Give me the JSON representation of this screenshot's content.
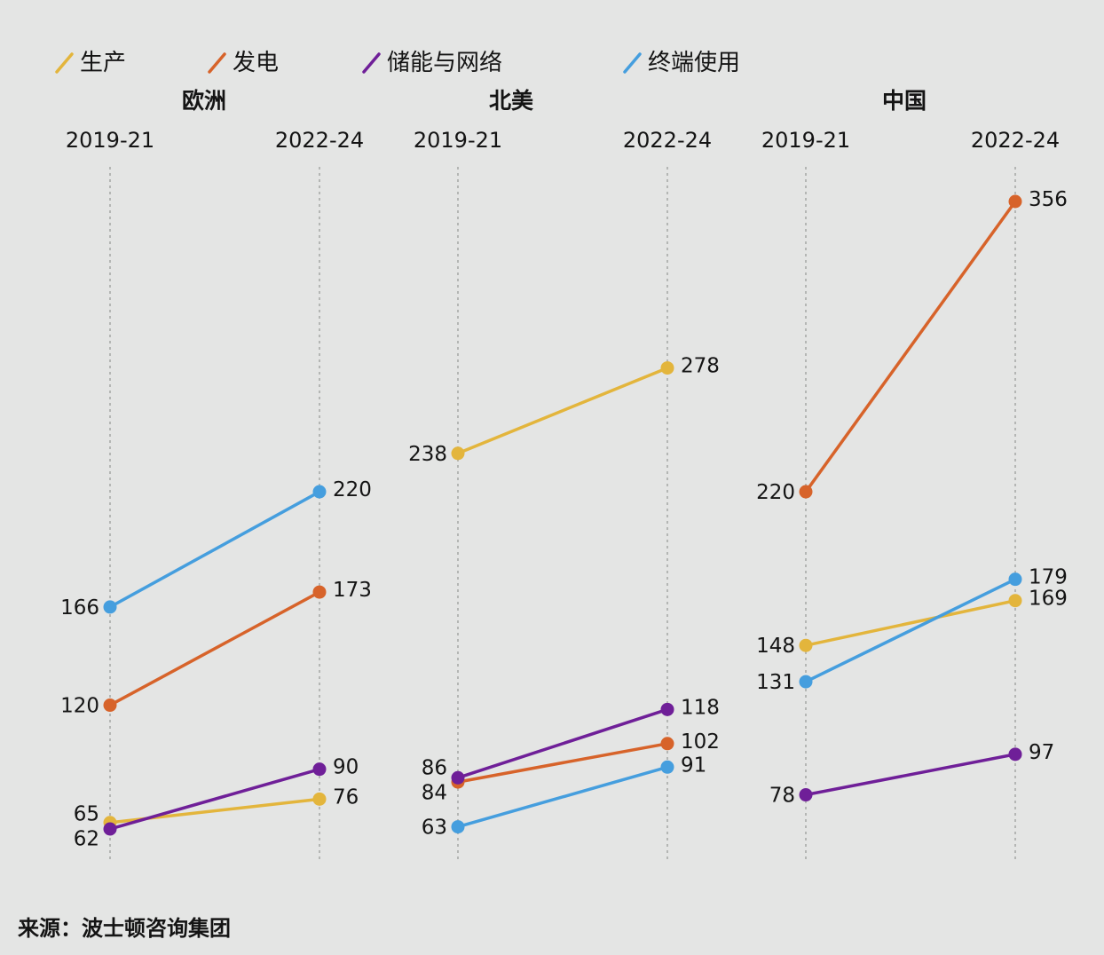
{
  "chart_data": {
    "type": "line",
    "legend": [
      {
        "name": "生产",
        "color": "#e3b53c"
      },
      {
        "name": "发电",
        "color": "#d7632a"
      },
      {
        "name": "储能与网络",
        "color": "#6f1f98"
      },
      {
        "name": "终端使用",
        "color": "#459ede"
      }
    ],
    "legend_placement": "top-left",
    "grid": "vertical dotted lines at each period",
    "ylim": [
      40,
      356
    ],
    "panels": [
      {
        "title": "欧洲",
        "x": [
          "2019-21",
          "2022-24"
        ],
        "series": [
          {
            "name": "生产",
            "values": [
              65,
              76
            ]
          },
          {
            "name": "发电",
            "values": [
              120,
              173
            ]
          },
          {
            "name": "储能与网络",
            "values": [
              62,
              90
            ]
          },
          {
            "name": "终端使用",
            "values": [
              166,
              220
            ]
          }
        ]
      },
      {
        "title": "北美",
        "x": [
          "2019-21",
          "2022-24"
        ],
        "series": [
          {
            "name": "生产",
            "values": [
              238,
              278
            ]
          },
          {
            "name": "发电",
            "values": [
              84,
              102
            ]
          },
          {
            "name": "储能与网络",
            "values": [
              86,
              118
            ]
          },
          {
            "name": "终端使用",
            "values": [
              63,
              91
            ]
          }
        ]
      },
      {
        "title": "中国",
        "x": [
          "2019-21",
          "2022-24"
        ],
        "series": [
          {
            "name": "生产",
            "values": [
              148,
              169
            ]
          },
          {
            "name": "发电",
            "values": [
              220,
              356
            ]
          },
          {
            "name": "储能与网络",
            "values": [
              78,
              97
            ]
          },
          {
            "name": "终端使用",
            "values": [
              131,
              179
            ]
          }
        ]
      }
    ]
  },
  "source": "来源：波士顿咨询集团"
}
